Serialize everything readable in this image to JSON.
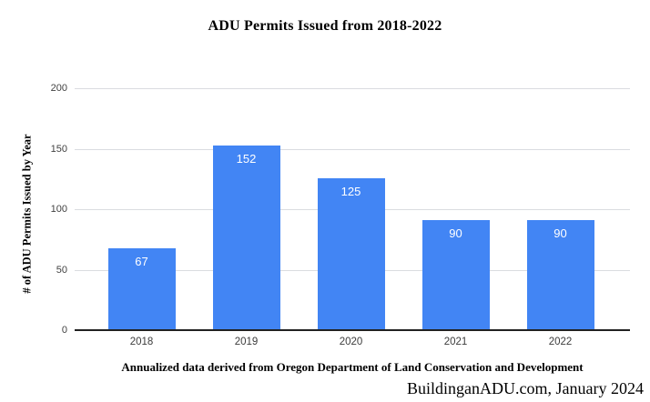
{
  "title": "ADU Permits Issued from 2018-2022",
  "footer": {
    "source_note": "Annualized data derived from Oregon Department of Land Conservation and Development",
    "attribution": "BuildinganADU.com, January 2024"
  },
  "colors": {
    "bar": "#4285f4",
    "bar_label": "#ffffff",
    "gridline": "#dadce0",
    "axis_line": "#212121",
    "tick_label": "#424242",
    "title_text": "#000000",
    "background": "#ffffff"
  },
  "chart_data": {
    "type": "bar",
    "categories": [
      "2018",
      "2019",
      "2020",
      "2021",
      "2022"
    ],
    "values": [
      67,
      152,
      125,
      90,
      90
    ],
    "title": "ADU Permits Issued from 2018-2022",
    "xlabel": "",
    "ylabel": "# of ADU Permits Issued by Year",
    "ylim": [
      0,
      200
    ],
    "yticks": [
      0,
      50,
      100,
      150,
      200
    ],
    "grid": true,
    "legend": false,
    "data_labels": true
  }
}
